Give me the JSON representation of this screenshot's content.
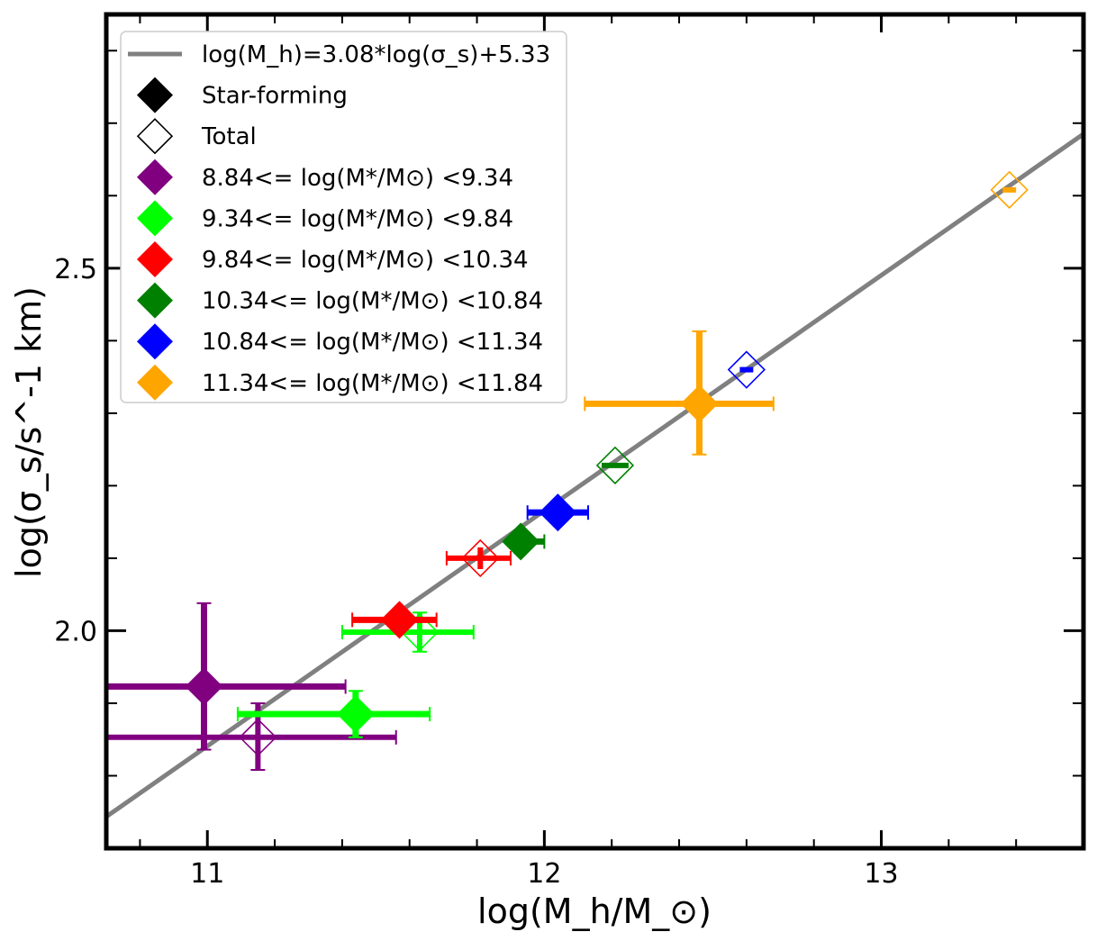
{
  "chart_data": {
    "type": "scatter",
    "xlabel": "log(M_h/M_⊙)",
    "ylabel": "log(σ_s/s^-1 km)",
    "xlim": [
      10.7,
      13.6
    ],
    "ylim": [
      1.7,
      2.85
    ],
    "x_ticks": [
      11,
      12,
      13
    ],
    "y_ticks": [
      2.0,
      2.5
    ],
    "x_tick_labels": [
      "11",
      "12",
      "13"
    ],
    "y_tick_labels": [
      "2.0",
      "2.5"
    ],
    "fit_line": {
      "label": "log(M_h)=3.08*log(σ_s)+5.33",
      "slope": 3.08,
      "intercept": 5.33,
      "color": "#808080"
    },
    "legend": {
      "position": "top-left",
      "entries": [
        {
          "kind": "line",
          "color": "#808080",
          "label": "log(M_h)=3.08*log(σ_s)+5.33"
        },
        {
          "kind": "filled",
          "color": "#000000",
          "label": "Star-forming"
        },
        {
          "kind": "open",
          "color": "#000000",
          "label": "Total"
        },
        {
          "kind": "filled",
          "color": "#800080",
          "label": "8.84<= log(M*/M⊙) <9.34"
        },
        {
          "kind": "filled",
          "color": "#00ff00",
          "label": "9.34<= log(M*/M⊙) <9.84"
        },
        {
          "kind": "filled",
          "color": "#ff0000",
          "label": "9.84<= log(M*/M⊙) <10.34"
        },
        {
          "kind": "filled",
          "color": "#008000",
          "label": "10.34<= log(M*/M⊙) <10.84"
        },
        {
          "kind": "filled",
          "color": "#0000ff",
          "label": "10.84<= log(M*/M⊙) <11.34"
        },
        {
          "kind": "filled",
          "color": "#ffa500",
          "label": "11.34<= log(M*/M⊙) <11.84"
        }
      ]
    },
    "series": [
      {
        "name": "8.84-9.34 star-forming",
        "color": "#800080",
        "filled": true,
        "x": 10.99,
        "y": 1.923,
        "xerr": [
          0.29,
          0.42
        ],
        "yerr": [
          0.087,
          0.115
        ]
      },
      {
        "name": "8.84-9.34 total",
        "color": "#800080",
        "filled": false,
        "x": 11.15,
        "y": 1.853,
        "xerr": [
          0.45,
          0.41
        ],
        "yerr": [
          0.045,
          0.047
        ]
      },
      {
        "name": "9.34-9.84 star-forming",
        "color": "#00ff00",
        "filled": true,
        "x": 11.44,
        "y": 1.885,
        "xerr": [
          0.35,
          0.22
        ],
        "yerr": [
          0.032,
          0.032
        ]
      },
      {
        "name": "9.34-9.84 total",
        "color": "#00ff00",
        "filled": false,
        "x": 11.63,
        "y": 1.998,
        "xerr": [
          0.23,
          0.16
        ],
        "yerr": [
          0.027,
          0.027
        ]
      },
      {
        "name": "9.84-10.34 star-forming",
        "color": "#ff0000",
        "filled": true,
        "x": 11.57,
        "y": 2.015,
        "xerr": [
          0.14,
          0.11
        ],
        "yerr": [
          0.0,
          0.0
        ]
      },
      {
        "name": "9.84-10.34 total",
        "color": "#ff0000",
        "filled": false,
        "x": 11.81,
        "y": 2.1,
        "xerr": [
          0.1,
          0.09
        ],
        "yerr": [
          0.015,
          0.015
        ]
      },
      {
        "name": "10.34-10.84 star-forming",
        "color": "#008000",
        "filled": true,
        "x": 11.93,
        "y": 2.123,
        "xerr": [
          0.0,
          0.07
        ],
        "yerr": [
          0.0,
          0.0
        ]
      },
      {
        "name": "10.34-10.84 total",
        "color": "#008000",
        "filled": false,
        "x": 12.21,
        "y": 2.228,
        "xerr": [
          0.04,
          0.04
        ],
        "yerr": [
          0.0,
          0.0
        ]
      },
      {
        "name": "10.84-11.34 star-forming",
        "color": "#0000ff",
        "filled": true,
        "x": 12.04,
        "y": 2.163,
        "xerr": [
          0.09,
          0.09
        ],
        "yerr": [
          0.0,
          0.0
        ]
      },
      {
        "name": "10.84-11.34 total",
        "color": "#0000ff",
        "filled": false,
        "x": 12.6,
        "y": 2.36,
        "xerr": [
          0.02,
          0.02
        ],
        "yerr": [
          0.0,
          0.0
        ]
      },
      {
        "name": "11.34-11.84 star-forming",
        "color": "#ffa500",
        "filled": true,
        "x": 12.46,
        "y": 2.313,
        "xerr": [
          0.34,
          0.22
        ],
        "yerr": [
          0.07,
          0.1
        ]
      },
      {
        "name": "11.34-11.84 total",
        "color": "#ffa500",
        "filled": false,
        "x": 13.38,
        "y": 2.608,
        "xerr": [
          0.02,
          0.02
        ],
        "yerr": [
          0.0,
          0.0
        ]
      }
    ]
  }
}
